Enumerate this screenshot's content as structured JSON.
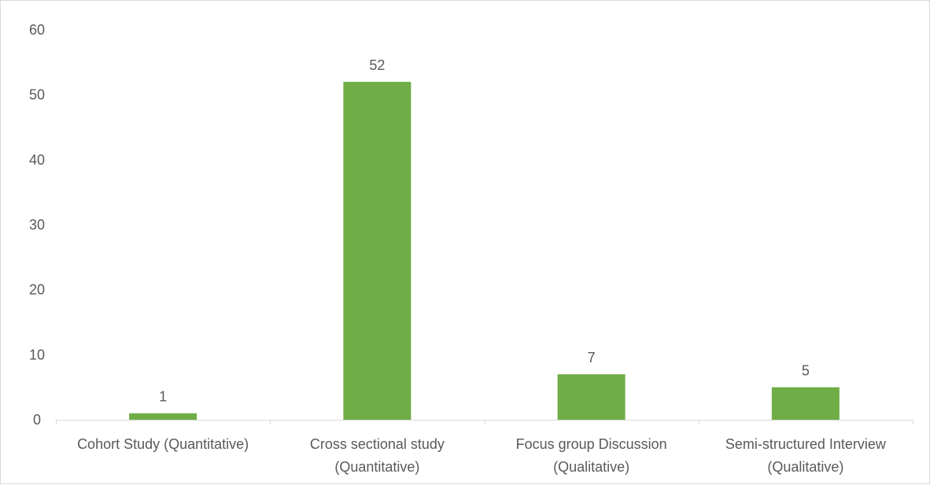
{
  "chart_data": {
    "type": "bar",
    "title": "",
    "xlabel": "",
    "ylabel": "",
    "ylim": [
      0,
      60
    ],
    "yticks": [
      0,
      10,
      20,
      30,
      40,
      50,
      60
    ],
    "grid": false,
    "legend": "none",
    "categories": [
      [
        "Cohort Study (Quantitative)"
      ],
      [
        "Cross sectional study",
        "(Quantitative)"
      ],
      [
        "Focus group Discussion",
        "(Qualitative)"
      ],
      [
        "Semi-structured Interview",
        "(Qualitative)"
      ]
    ],
    "values": [
      1,
      52,
      7,
      5
    ],
    "data_labels": [
      "1",
      "52",
      "7",
      "5"
    ],
    "bar_color": "#70ad47",
    "axis_color": "#d9d9d9",
    "text_color": "#595959"
  }
}
